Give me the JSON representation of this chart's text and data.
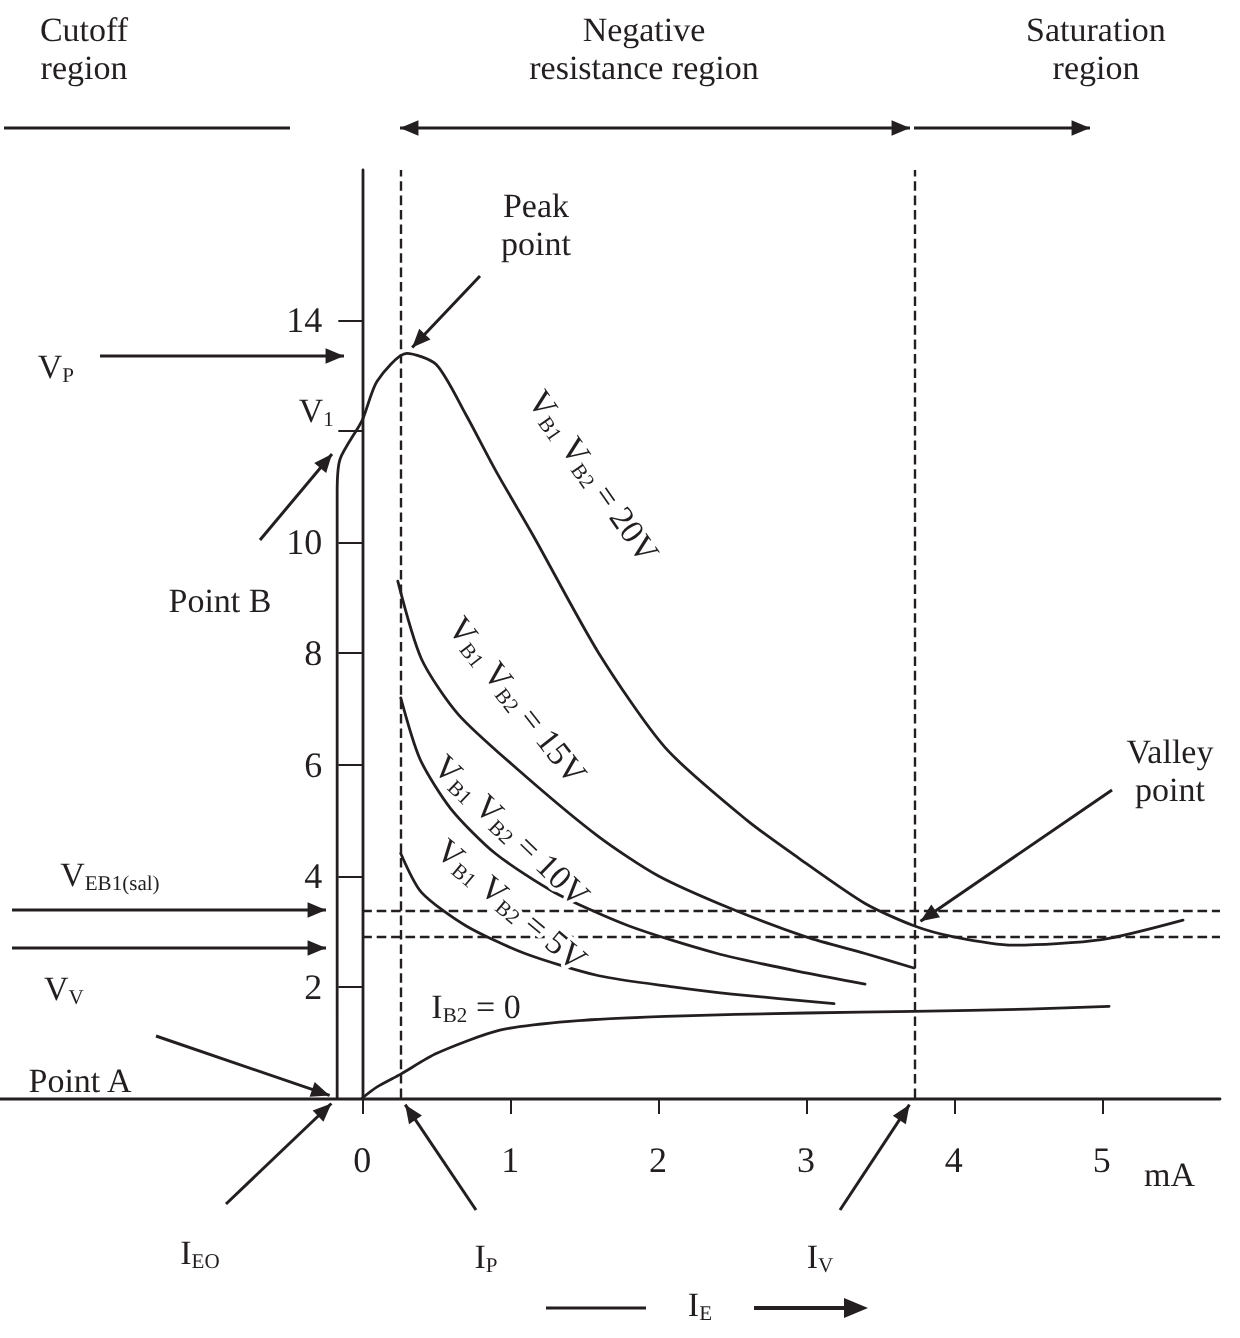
{
  "chart_data": {
    "type": "line",
    "xlabel": "mA",
    "xlim": [
      -2.45,
      5.8
    ],
    "xticks": [
      0,
      1,
      2,
      3,
      4,
      5
    ],
    "ylim": [
      0,
      16.7
    ],
    "yticks": [
      2,
      4,
      6,
      8,
      10,
      {
        "value": 12,
        "label": null
      },
      14
    ],
    "grid": false,
    "legend": false,
    "marker": "none",
    "series": [
      {
        "name": "V$_{B1}$ V$_{B2}$ = 20V",
        "color": "#231f20",
        "x": [
          -0.17,
          -0.17,
          -0.15,
          0,
          0.1,
          0.3,
          0.5,
          0.7,
          0.9,
          1.16,
          1.6,
          2.05,
          2.6,
          2.96,
          3.4,
          3.73,
          4.0,
          4.4,
          5.0,
          5.55
        ],
        "values": [
          0,
          10.9,
          11.5,
          12.2,
          12.9,
          13.4,
          13.2,
          12.3,
          11.3,
          10.1,
          8.0,
          6.3,
          5.0,
          4.3,
          3.5,
          3.1,
          2.9,
          2.75,
          2.85,
          3.2
        ]
      },
      {
        "name": "V$_{B1}$ V$_{B2}$ = 15V",
        "color": "#231f20",
        "x": [
          0.24,
          0.4,
          0.65,
          1.1,
          1.6,
          2.0,
          2.5,
          3.0,
          3.4,
          3.73
        ],
        "values": [
          9.3,
          7.9,
          6.9,
          5.8,
          4.7,
          4.0,
          3.4,
          2.9,
          2.6,
          2.34
        ]
      },
      {
        "name": "V$_{B1}$ V$_{B2}$ = 10V",
        "color": "#231f20",
        "x": [
          0.26,
          0.39,
          0.6,
          0.9,
          1.3,
          1.8,
          2.4,
          3.0,
          3.4
        ],
        "values": [
          7.2,
          6.1,
          5.2,
          4.4,
          3.7,
          3.1,
          2.6,
          2.25,
          2.05
        ]
      },
      {
        "name": "V$_{B1}$ V$_{B2}$ = 5V",
        "color": "#231f20",
        "x": [
          0.26,
          0.4,
          0.7,
          1.1,
          1.6,
          2.1,
          2.5,
          3.19
        ],
        "values": [
          4.4,
          3.7,
          3.1,
          2.6,
          2.2,
          2.0,
          1.87,
          1.7
        ]
      },
      {
        "name": "I$_{B2}$ = 0",
        "color": "#231f20",
        "x": [
          0,
          0.1,
          0.26,
          0.5,
          0.93,
          1.4,
          2.05,
          3.0,
          3.73,
          4.5,
          5.05
        ],
        "values": [
          0,
          0.2,
          0.43,
          0.8,
          1.22,
          1.38,
          1.47,
          1.53,
          1.56,
          1.6,
          1.65
        ]
      }
    ],
    "ref_lines": [
      {
        "axis": "x",
        "value": 0.26,
        "line_style": "dashed",
        "color": "#231f20"
      },
      {
        "axis": "x",
        "value": 3.73,
        "line_style": "dashed",
        "color": "#231f20"
      },
      {
        "axis": "y",
        "value": 3.38,
        "line_style": "dashed",
        "color": "#231f20"
      },
      {
        "axis": "y",
        "value": 2.91,
        "line_style": "dashed",
        "color": "#231f20"
      }
    ],
    "annotations": [
      "Cutoff region",
      "Negative resistance region",
      "Saturation region",
      {
        "text": "Peak point",
        "x": 0.3,
        "y": 13.4
      },
      {
        "text": "Valley point",
        "x": 3.73,
        "y": 3.1
      },
      "V$_{P}$",
      {
        "text": "V$_{1}$",
        "x": 0,
        "y": 12.2
      },
      {
        "text": "Point B",
        "x": -0.17,
        "y": 11.7
      },
      {
        "text": "Point A",
        "x": -0.17,
        "y": 0
      },
      "V$_{EB1(sal)}$",
      "V$_{V}$",
      {
        "text": "I$_{EO}$",
        "x": -0.17,
        "y": 0
      },
      {
        "text": "I$_{P}$",
        "x": 0.26,
        "y": 0
      },
      {
        "text": "I$_{V}$",
        "x": 3.73,
        "y": 0
      },
      "I$_{E}$"
    ]
  }
}
